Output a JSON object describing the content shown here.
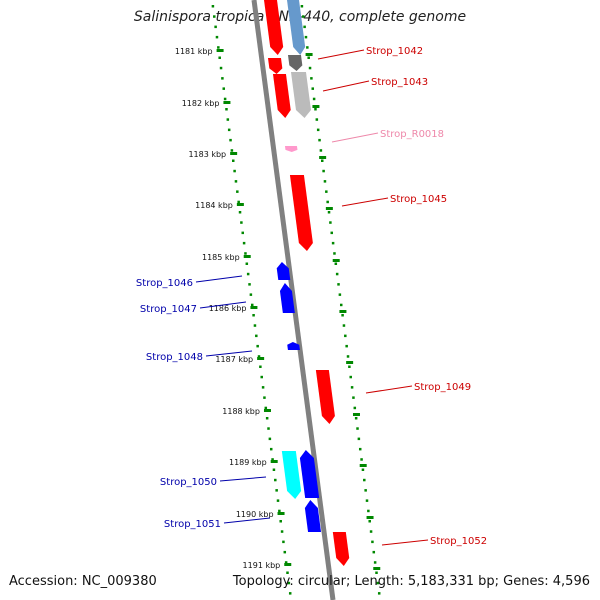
{
  "title": "Salinispora tropica CNB-440, complete genome",
  "footer": {
    "accession": "Accession: NC_009380",
    "summary": "Topology: circular; Length: 5,183,331 bp; Genes: 4,596"
  },
  "colors": {
    "forward_gene": "#ff0000",
    "reverse_gene": "#0000ff",
    "rna": "#ff99cc",
    "tick": "#008800",
    "backbone": "#808080",
    "cyan_feature": "#00ffff",
    "light_blue_feature": "#6699cc"
  },
  "ruler_ticks": [
    "1181 kbp",
    "1182 kbp",
    "1183 kbp",
    "1184 kbp",
    "1185 kbp",
    "1186 kbp",
    "1187 kbp",
    "1188 kbp",
    "1189 kbp",
    "1190 kbp",
    "1191 kbp"
  ],
  "gene_labels": [
    {
      "text": "Strop_1042",
      "strand": "forward"
    },
    {
      "text": "Strop_1043",
      "strand": "forward"
    },
    {
      "text": "Strop_R0018",
      "strand": "rna"
    },
    {
      "text": "Strop_1045",
      "strand": "forward"
    },
    {
      "text": "Strop_1046",
      "strand": "reverse"
    },
    {
      "text": "Strop_1047",
      "strand": "reverse"
    },
    {
      "text": "Strop_1048",
      "strand": "reverse"
    },
    {
      "text": "Strop_1049",
      "strand": "forward"
    },
    {
      "text": "Strop_1050",
      "strand": "reverse"
    },
    {
      "text": "Strop_1051",
      "strand": "reverse"
    },
    {
      "text": "Strop_1052",
      "strand": "forward"
    }
  ]
}
